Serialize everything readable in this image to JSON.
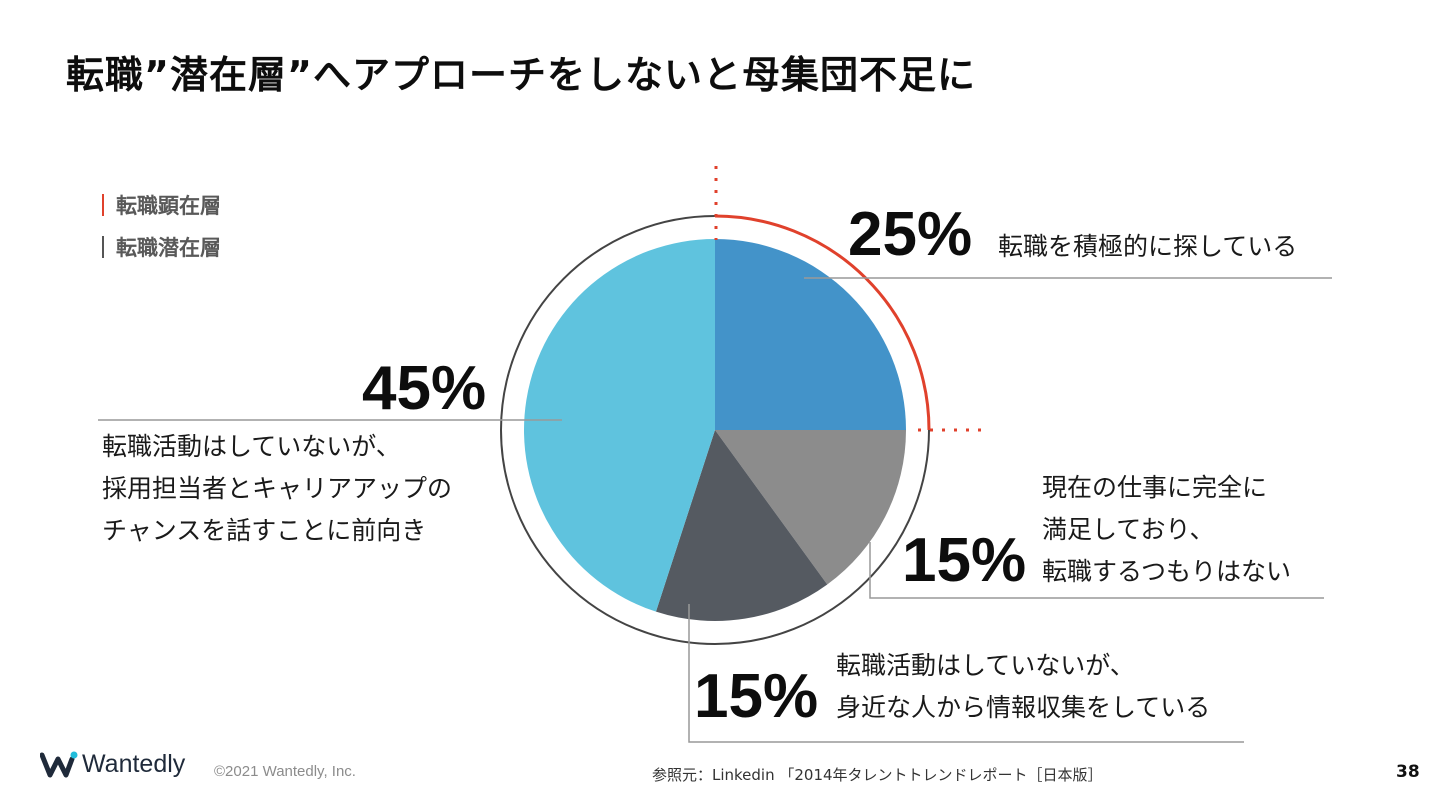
{
  "title": "転職”潜在層”へアプローチをしないと母集団不足に",
  "legend": [
    {
      "label": "転職顕在層",
      "color": "#e0412c"
    },
    {
      "label": "転職潜在層",
      "color": "#555555"
    }
  ],
  "chart_data": {
    "type": "pie",
    "title": "転職”潜在層”へアプローチをしないと母集団不足に",
    "slices": [
      {
        "percent": 25,
        "label": "25%",
        "lines": [
          "転職を積極的に探している"
        ],
        "color": "#4393c9",
        "group": "転職顕在層"
      },
      {
        "percent": 15,
        "label": "15%",
        "lines": [
          "現在の仕事に完全に",
          "満足しており、",
          "転職するつもりはない"
        ],
        "color": "#8c8c8c",
        "group": "転職潜在層"
      },
      {
        "percent": 15,
        "label": "15%",
        "lines": [
          "転職活動はしていないが、",
          "身近な人から情報収集をしている"
        ],
        "color": "#555a61",
        "group": "転職潜在層"
      },
      {
        "percent": 45,
        "label": "45%",
        "lines": [
          "転職活動はしていないが、",
          "採用担当者とキャリアアップの",
          "チャンスを話すことに前向き"
        ],
        "color": "#5fc3de",
        "group": "転職潜在層"
      }
    ],
    "start": "12 o'clock",
    "direction": "clockwise"
  },
  "footer": {
    "logo_text": "Wantedly",
    "copyright": "©2021 Wantedly, Inc.",
    "source": "参照元：Linkedin 「2014年タレントトレンドレポート［日本版］",
    "page_number": "38"
  }
}
